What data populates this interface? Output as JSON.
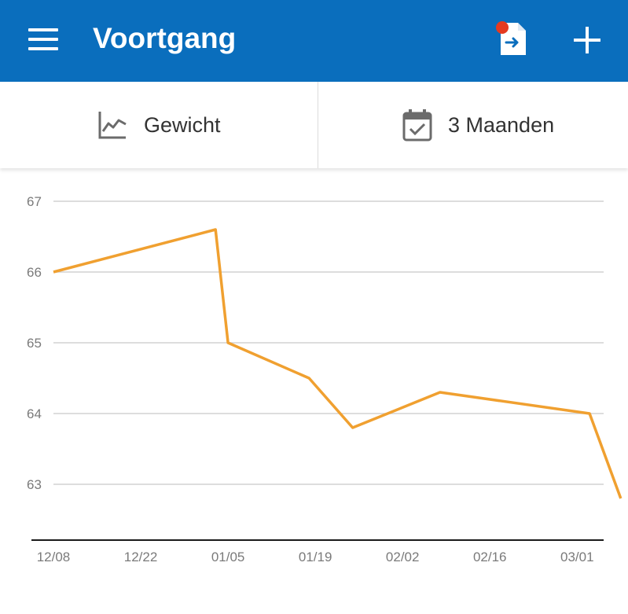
{
  "app": {
    "title": "Voortgang",
    "accent_color": "#0a6ebd",
    "icons": [
      "menu-icon",
      "export-document-icon",
      "notification-dot-icon",
      "add-icon"
    ]
  },
  "toolbar": {
    "metric_label": "Gewicht",
    "metric_icon": "line-chart-icon",
    "range_label": "3 Maanden",
    "range_icon": "calendar-check-icon"
  },
  "chart_data": {
    "type": "line",
    "title": "",
    "xlabel": "",
    "ylabel": "",
    "grid": true,
    "line_color": "#f0a030",
    "ylim": [
      62.3,
      67
    ],
    "xlim": [
      "2019-12-08",
      "2020-03-05"
    ],
    "x_ticks": [
      "12/08",
      "12/22",
      "01/05",
      "01/19",
      "02/02",
      "02/16",
      "03/01"
    ],
    "y_ticks": [
      63,
      64,
      65,
      66,
      67
    ],
    "series": [
      {
        "x": [
          "2019-12-08",
          "2020-01-03",
          "2020-01-05",
          "2020-01-18",
          "2020-01-25",
          "2020-02-08",
          "2020-03-03",
          "2020-03-08"
        ],
        "values": [
          66.0,
          66.6,
          65.0,
          64.5,
          63.8,
          64.3,
          64.0,
          62.8
        ]
      }
    ]
  }
}
